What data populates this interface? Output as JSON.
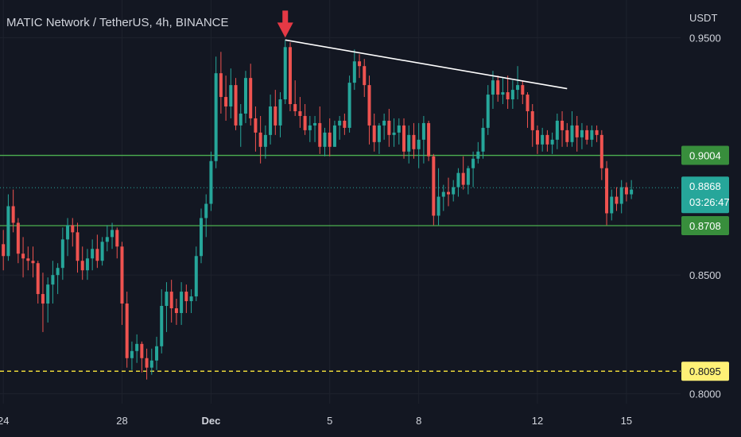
{
  "header": {
    "title": "MATIC Network / TetherUS, 4h, BINANCE"
  },
  "axis": {
    "unit": "USDT"
  },
  "colors": {
    "background": "#131722",
    "up": "#26a69a",
    "down": "#ef5350",
    "text": "#d1d4dc",
    "level_line": "#4caf50",
    "level_label": "#388e3c",
    "current_label": "#26a69a",
    "support_dashed": "#ffeb3b",
    "support_label": "#fff176",
    "trendline": "#ffffff",
    "arrow": "#e53945"
  },
  "chart_data": {
    "type": "candlestick",
    "title": "MATIC Network / TetherUS, 4h, BINANCE",
    "ylabel": "USDT",
    "ylim": [
      0.7935,
      0.9635
    ],
    "y_ticks": [
      "0.9500",
      "0.8500",
      "0.8000"
    ],
    "x_ticks": [
      {
        "label": "24",
        "index": 0
      },
      {
        "label": "28",
        "index": 24
      },
      {
        "label": "Dec",
        "index": 42
      },
      {
        "label": "5",
        "index": 66
      },
      {
        "label": "8",
        "index": 84
      },
      {
        "label": "12",
        "index": 108
      },
      {
        "label": "15",
        "index": 126
      }
    ],
    "candles": [
      [
        0.863,
        0.869,
        0.852,
        0.858
      ],
      [
        0.858,
        0.884,
        0.856,
        0.879
      ],
      [
        0.879,
        0.886,
        0.868,
        0.872
      ],
      [
        0.872,
        0.874,
        0.855,
        0.859
      ],
      [
        0.859,
        0.866,
        0.849,
        0.857
      ],
      [
        0.857,
        0.862,
        0.852,
        0.856
      ],
      [
        0.856,
        0.862,
        0.849,
        0.855
      ],
      [
        0.855,
        0.856,
        0.838,
        0.842
      ],
      [
        0.842,
        0.851,
        0.826,
        0.838
      ],
      [
        0.838,
        0.849,
        0.83,
        0.846
      ],
      [
        0.846,
        0.856,
        0.838,
        0.85
      ],
      [
        0.85,
        0.855,
        0.842,
        0.853
      ],
      [
        0.853,
        0.87,
        0.848,
        0.865
      ],
      [
        0.865,
        0.874,
        0.858,
        0.871
      ],
      [
        0.871,
        0.874,
        0.862,
        0.868
      ],
      [
        0.868,
        0.872,
        0.851,
        0.856
      ],
      [
        0.856,
        0.862,
        0.848,
        0.852
      ],
      [
        0.852,
        0.861,
        0.848,
        0.857
      ],
      [
        0.857,
        0.865,
        0.852,
        0.861
      ],
      [
        0.861,
        0.867,
        0.853,
        0.856
      ],
      [
        0.856,
        0.866,
        0.854,
        0.864
      ],
      [
        0.864,
        0.871,
        0.86,
        0.866
      ],
      [
        0.866,
        0.872,
        0.861,
        0.869
      ],
      [
        0.869,
        0.87,
        0.857,
        0.862
      ],
      [
        0.862,
        0.864,
        0.829,
        0.838
      ],
      [
        0.838,
        0.843,
        0.811,
        0.815
      ],
      [
        0.815,
        0.822,
        0.81,
        0.818
      ],
      [
        0.818,
        0.825,
        0.813,
        0.821
      ],
      [
        0.821,
        0.822,
        0.809,
        0.815
      ],
      [
        0.815,
        0.819,
        0.806,
        0.811
      ],
      [
        0.811,
        0.819,
        0.808,
        0.814
      ],
      [
        0.814,
        0.824,
        0.81,
        0.82
      ],
      [
        0.82,
        0.844,
        0.817,
        0.837
      ],
      [
        0.837,
        0.847,
        0.826,
        0.843
      ],
      [
        0.843,
        0.848,
        0.83,
        0.836
      ],
      [
        0.836,
        0.84,
        0.829,
        0.834
      ],
      [
        0.834,
        0.847,
        0.829,
        0.843
      ],
      [
        0.843,
        0.846,
        0.834,
        0.839
      ],
      [
        0.839,
        0.844,
        0.834,
        0.841
      ],
      [
        0.841,
        0.862,
        0.839,
        0.858
      ],
      [
        0.858,
        0.878,
        0.855,
        0.874
      ],
      [
        0.874,
        0.884,
        0.866,
        0.88
      ],
      [
        0.88,
        0.902,
        0.877,
        0.898
      ],
      [
        0.898,
        0.942,
        0.895,
        0.935
      ],
      [
        0.935,
        0.944,
        0.918,
        0.925
      ],
      [
        0.925,
        0.934,
        0.915,
        0.921
      ],
      [
        0.921,
        0.937,
        0.916,
        0.93
      ],
      [
        0.93,
        0.933,
        0.911,
        0.913
      ],
      [
        0.913,
        0.922,
        0.904,
        0.918
      ],
      [
        0.918,
        0.936,
        0.914,
        0.933
      ],
      [
        0.933,
        0.939,
        0.913,
        0.916
      ],
      [
        0.916,
        0.921,
        0.902,
        0.91
      ],
      [
        0.91,
        0.917,
        0.897,
        0.904
      ],
      [
        0.904,
        0.913,
        0.899,
        0.909
      ],
      [
        0.909,
        0.926,
        0.905,
        0.921
      ],
      [
        0.921,
        0.928,
        0.909,
        0.913
      ],
      [
        0.913,
        0.927,
        0.908,
        0.924
      ],
      [
        0.924,
        0.949,
        0.922,
        0.946
      ],
      [
        0.946,
        0.948,
        0.919,
        0.922
      ],
      [
        0.922,
        0.932,
        0.917,
        0.919
      ],
      [
        0.919,
        0.925,
        0.912,
        0.917
      ],
      [
        0.917,
        0.922,
        0.909,
        0.911
      ],
      [
        0.911,
        0.917,
        0.906,
        0.913
      ],
      [
        0.913,
        0.917,
        0.906,
        0.914
      ],
      [
        0.914,
        0.921,
        0.901,
        0.904
      ],
      [
        0.904,
        0.912,
        0.9,
        0.91
      ],
      [
        0.91,
        0.916,
        0.9,
        0.904
      ],
      [
        0.904,
        0.915,
        0.904,
        0.913
      ],
      [
        0.913,
        0.917,
        0.907,
        0.915
      ],
      [
        0.915,
        0.918,
        0.909,
        0.912
      ],
      [
        0.912,
        0.934,
        0.91,
        0.931
      ],
      [
        0.931,
        0.945,
        0.928,
        0.94
      ],
      [
        0.94,
        0.943,
        0.933,
        0.938
      ],
      [
        0.938,
        0.941,
        0.925,
        0.93
      ],
      [
        0.93,
        0.934,
        0.905,
        0.913
      ],
      [
        0.913,
        0.918,
        0.902,
        0.906
      ],
      [
        0.906,
        0.914,
        0.901,
        0.913
      ],
      [
        0.913,
        0.918,
        0.907,
        0.915
      ],
      [
        0.915,
        0.92,
        0.904,
        0.909
      ],
      [
        0.909,
        0.916,
        0.904,
        0.91
      ],
      [
        0.91,
        0.916,
        0.905,
        0.913
      ],
      [
        0.913,
        0.916,
        0.899,
        0.902
      ],
      [
        0.902,
        0.913,
        0.897,
        0.909
      ],
      [
        0.909,
        0.914,
        0.899,
        0.903
      ],
      [
        0.903,
        0.914,
        0.895,
        0.907
      ],
      [
        0.907,
        0.917,
        0.897,
        0.914
      ],
      [
        0.914,
        0.915,
        0.898,
        0.9
      ],
      [
        0.9,
        0.901,
        0.871,
        0.875
      ],
      [
        0.875,
        0.895,
        0.871,
        0.883
      ],
      [
        0.883,
        0.888,
        0.877,
        0.885
      ],
      [
        0.885,
        0.891,
        0.879,
        0.884
      ],
      [
        0.884,
        0.89,
        0.881,
        0.887
      ],
      [
        0.887,
        0.895,
        0.883,
        0.893
      ],
      [
        0.893,
        0.9,
        0.886,
        0.888
      ],
      [
        0.888,
        0.896,
        0.884,
        0.895
      ],
      [
        0.895,
        0.902,
        0.887,
        0.899
      ],
      [
        0.899,
        0.906,
        0.897,
        0.902
      ],
      [
        0.902,
        0.916,
        0.899,
        0.912
      ],
      [
        0.912,
        0.93,
        0.909,
        0.926
      ],
      [
        0.926,
        0.936,
        0.92,
        0.932
      ],
      [
        0.932,
        0.934,
        0.923,
        0.926
      ],
      [
        0.926,
        0.933,
        0.922,
        0.927
      ],
      [
        0.927,
        0.934,
        0.92,
        0.924
      ],
      [
        0.924,
        0.932,
        0.92,
        0.928
      ],
      [
        0.928,
        0.938,
        0.924,
        0.93
      ],
      [
        0.93,
        0.932,
        0.922,
        0.926
      ],
      [
        0.926,
        0.927,
        0.912,
        0.919
      ],
      [
        0.919,
        0.922,
        0.904,
        0.911
      ],
      [
        0.911,
        0.913,
        0.901,
        0.905
      ],
      [
        0.905,
        0.912,
        0.902,
        0.909
      ],
      [
        0.909,
        0.911,
        0.902,
        0.905
      ],
      [
        0.905,
        0.91,
        0.901,
        0.907
      ],
      [
        0.907,
        0.918,
        0.903,
        0.915
      ],
      [
        0.915,
        0.919,
        0.904,
        0.911
      ],
      [
        0.911,
        0.914,
        0.904,
        0.906
      ],
      [
        0.906,
        0.919,
        0.904,
        0.913
      ],
      [
        0.913,
        0.917,
        0.902,
        0.908
      ],
      [
        0.908,
        0.914,
        0.903,
        0.911
      ],
      [
        0.911,
        0.913,
        0.905,
        0.907
      ],
      [
        0.907,
        0.913,
        0.904,
        0.911
      ],
      [
        0.911,
        0.913,
        0.906,
        0.909
      ],
      [
        0.909,
        0.911,
        0.89,
        0.895
      ],
      [
        0.895,
        0.898,
        0.871,
        0.876
      ],
      [
        0.876,
        0.886,
        0.873,
        0.883
      ],
      [
        0.883,
        0.887,
        0.877,
        0.88
      ],
      [
        0.88,
        0.89,
        0.876,
        0.887
      ],
      [
        0.887,
        0.889,
        0.881,
        0.884
      ],
      [
        0.884,
        0.89,
        0.882,
        0.886
      ]
    ],
    "levels": [
      {
        "name": "resistance",
        "value": 0.9004,
        "label": "0.9004",
        "style": "solid"
      },
      {
        "name": "support",
        "value": 0.8708,
        "label": "0.8708",
        "style": "solid"
      },
      {
        "name": "low-support",
        "value": 0.8095,
        "label": "0.8095",
        "style": "dashed"
      }
    ],
    "current": {
      "price": 0.8868,
      "label": "0.8868",
      "countdown": "03:26:47"
    },
    "trendline": {
      "start": {
        "index": 57,
        "price": 0.949
      },
      "end": {
        "index": 114,
        "price": 0.9285
      }
    },
    "arrow": {
      "index": 57,
      "direction": "down"
    },
    "grid": true,
    "legend": "none"
  }
}
